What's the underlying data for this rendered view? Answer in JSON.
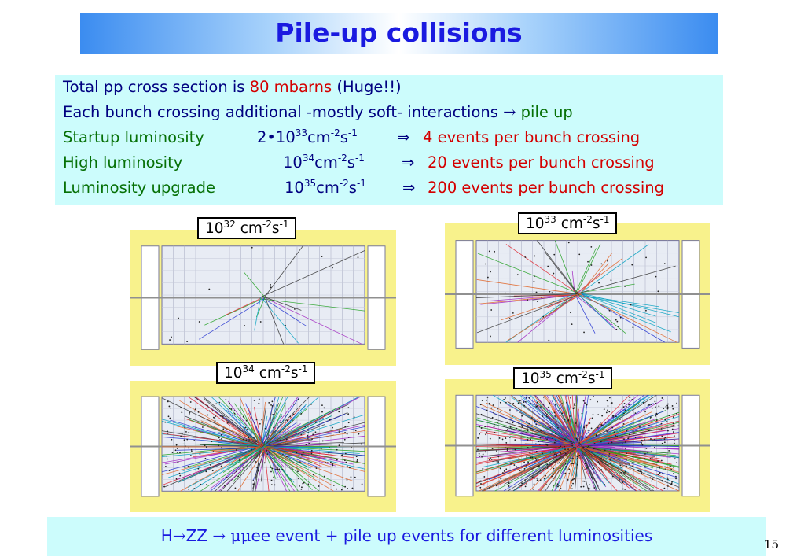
{
  "title": "Pile-up collisions",
  "info": {
    "line1": {
      "pre": "Total pp cross section is ",
      "value": "80 mbarns",
      "post": " (Huge!!)"
    },
    "line2": {
      "pre": "Each bunch crossing additional -mostly soft- interactions ",
      "arrow": "→",
      "post": " pile up"
    },
    "line3": {
      "label": "Startup luminosity",
      "coef": "2•10",
      "exp1": "33",
      "unit1": "cm",
      "exp2": "-2",
      "unit2": "s",
      "exp3": "-1",
      "arrow": "⇒",
      "result": "4 events per bunch crossing"
    },
    "line4": {
      "label": "High luminosity",
      "base": "10",
      "exp1": "34",
      "unit1": "cm",
      "exp2": "-2",
      "unit2": "s",
      "exp3": "-1",
      "arrow": "⇒",
      "result": "20 events per bunch crossing"
    },
    "line5": {
      "label": "Luminosity upgrade",
      "base": "10",
      "exp1": "35",
      "unit1": "cm",
      "exp2": "-2",
      "unit2": "s",
      "exp3": "-1",
      "arrow": "⇒",
      "result": "200 events per bunch crossing"
    }
  },
  "panels": [
    {
      "base": "10",
      "exp": "32",
      "unit1": " cm",
      "exp2": "-2",
      "unit2": "s",
      "exp3": "-1",
      "tracks": 14
    },
    {
      "base": "10",
      "exp": "33",
      "unit1": " cm",
      "exp2": "-2",
      "unit2": "s",
      "exp3": "-1",
      "tracks": 45
    },
    {
      "base": "10",
      "exp": "34",
      "unit1": " cm",
      "exp2": "-2",
      "unit2": "s",
      "exp3": "-1",
      "tracks": 220
    },
    {
      "base": "10",
      "exp": "35",
      "unit1": " cm",
      "exp2": "-2",
      "unit2": "s",
      "exp3": "-1",
      "tracks": 420
    }
  ],
  "caption": {
    "h": "H",
    "arrow1": "→",
    "zz": "ZZ ",
    "arrow2": "→",
    "mumu": " μμ",
    "rest": "ee event + pile up events for different luminosities"
  },
  "page_number": "15",
  "colors": {
    "title": "#1a1ae0",
    "box": "#ccfcfc",
    "panel_bg": "#f8f28c",
    "red": "#d40000",
    "green": "#067006",
    "navy": "#000080"
  }
}
